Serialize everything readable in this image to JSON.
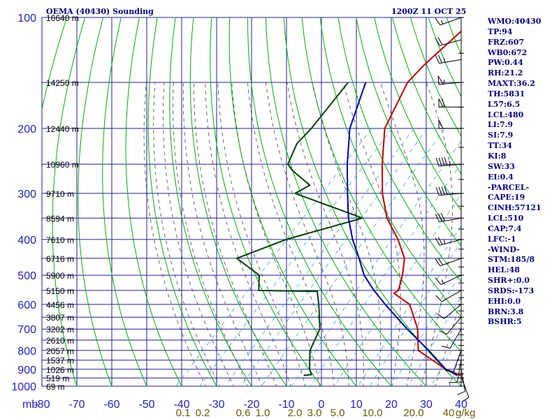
{
  "chart_data": {
    "type": "line",
    "chart_kind": "skew-t log-p sounding",
    "title": "OEMA (40430) Sounding",
    "time": "1200Z 11 OCT 25",
    "ylabel": "mb",
    "pressure_ticks": [
      100,
      200,
      300,
      400,
      500,
      600,
      700,
      800,
      900,
      1000
    ],
    "temp_ticks": [
      -80,
      -70,
      -60,
      -50,
      -40,
      -30,
      -20,
      -10,
      0,
      10,
      20,
      30,
      40
    ],
    "xlim": [
      -80,
      40
    ],
    "ylim": [
      1050,
      100
    ],
    "mixing_ratio_labels": [
      "0.1",
      "0.2",
      "0.6",
      "1.0",
      "2.0",
      "3.0",
      "5.0",
      "10.0",
      "20.0",
      "40"
    ],
    "mixing_ratio_unit": "g/kg",
    "height_labels": [
      {
        "text": "16640 m",
        "p": 100
      },
      {
        "text": "14250 m",
        "p": 150
      },
      {
        "text": "12440 m",
        "p": 200
      },
      {
        "text": "10960 m",
        "p": 250
      },
      {
        "text": "9710 m",
        "p": 300
      },
      {
        "text": "8594 m",
        "p": 350
      },
      {
        "text": "7610 m",
        "p": 400
      },
      {
        "text": "6716 m",
        "p": 450
      },
      {
        "text": "5900 m",
        "p": 500
      },
      {
        "text": "5150 m",
        "p": 550
      },
      {
        "text": "4456 m",
        "p": 600
      },
      {
        "text": "3807 m",
        "p": 650
      },
      {
        "text": "3202 m",
        "p": 700
      },
      {
        "text": "2610 m",
        "p": 750
      },
      {
        "text": "2057 m",
        "p": 800
      },
      {
        "text": "1537 m",
        "p": 850
      },
      {
        "text": "1026 m",
        "p": 900
      },
      {
        "text": "519 m",
        "p": 950
      },
      {
        "text": "69 m",
        "p": 1000
      }
    ],
    "series": [
      {
        "name": "Temperature",
        "color": "#c00000",
        "points": [
          [
            100,
            -56
          ],
          [
            135,
            -58
          ],
          [
            150,
            -58
          ],
          [
            200,
            -52
          ],
          [
            250,
            -43
          ],
          [
            300,
            -35
          ],
          [
            350,
            -27
          ],
          [
            400,
            -18
          ],
          [
            450,
            -11
          ],
          [
            500,
            -7
          ],
          [
            550,
            -4
          ],
          [
            560,
            -4.5
          ],
          [
            600,
            3
          ],
          [
            700,
            12
          ],
          [
            800,
            18
          ],
          [
            900,
            31
          ],
          [
            935,
            37
          ],
          [
            940,
            38.5
          ]
        ]
      },
      {
        "name": "Dewpoint",
        "color": "#004000",
        "points": [
          [
            150,
            -75
          ],
          [
            200,
            -73
          ],
          [
            220,
            -73
          ],
          [
            250,
            -70
          ],
          [
            260,
            -67
          ],
          [
            285,
            -58
          ],
          [
            300,
            -60
          ],
          [
            350,
            -34
          ],
          [
            400,
            -50
          ],
          [
            450,
            -59
          ],
          [
            500,
            -48
          ],
          [
            550,
            -44
          ],
          [
            553,
            -27
          ],
          [
            600,
            -23
          ],
          [
            700,
            -16
          ],
          [
            800,
            -13
          ],
          [
            900,
            -8
          ],
          [
            930,
            -6
          ],
          [
            935,
            -8
          ]
        ]
      },
      {
        "name": "Parcel",
        "color": "#0000a0",
        "points": [
          [
            150,
            -70
          ],
          [
            200,
            -62
          ],
          [
            250,
            -53
          ],
          [
            300,
            -45
          ],
          [
            350,
            -38
          ],
          [
            400,
            -31
          ],
          [
            450,
            -24
          ],
          [
            500,
            -18
          ],
          [
            550,
            -11
          ],
          [
            600,
            -4
          ],
          [
            700,
            9
          ],
          [
            800,
            21
          ],
          [
            900,
            31
          ],
          [
            935,
            36
          ]
        ]
      }
    ],
    "wind_barbs": [
      {
        "p": 100,
        "dir": 250,
        "spd": 15
      },
      {
        "p": 115,
        "dir": 255,
        "spd": 20
      },
      {
        "p": 130,
        "dir": 260,
        "spd": 25
      },
      {
        "p": 150,
        "dir": 265,
        "spd": 55
      },
      {
        "p": 175,
        "dir": 270,
        "spd": 60
      },
      {
        "p": 200,
        "dir": 270,
        "spd": 50
      },
      {
        "p": 250,
        "dir": 265,
        "spd": 45
      },
      {
        "p": 300,
        "dir": 265,
        "spd": 40
      },
      {
        "p": 350,
        "dir": 260,
        "spd": 30
      },
      {
        "p": 400,
        "dir": 255,
        "spd": 25
      },
      {
        "p": 450,
        "dir": 250,
        "spd": 20
      },
      {
        "p": 500,
        "dir": 245,
        "spd": 15
      },
      {
        "p": 550,
        "dir": 240,
        "spd": 10
      },
      {
        "p": 600,
        "dir": 230,
        "spd": 10
      },
      {
        "p": 650,
        "dir": 220,
        "spd": 10
      },
      {
        "p": 700,
        "dir": 210,
        "spd": 10
      },
      {
        "p": 800,
        "dir": 200,
        "spd": 10
      },
      {
        "p": 850,
        "dir": 190,
        "spd": 10
      },
      {
        "p": 900,
        "dir": 170,
        "spd": 10
      },
      {
        "p": 940,
        "dir": 160,
        "spd": 10
      }
    ]
  },
  "indices": [
    "WMO:40430",
    "TP:94",
    "FRZ:607",
    "WB0:672",
    "PW:0.44",
    "RH:21.2",
    "MAXT:36.2",
    "TH:5831",
    "L57:6.5",
    "LCL:480",
    "LI:7.9",
    "SI:7.9",
    "TT:34",
    "KI:8",
    "SW:33",
    "EI:0.4",
    "-PARCEL-",
    "CAPE:19",
    "CINH:57121",
    "LCL:510",
    "CAP:7.4",
    "LFC:-1",
    "-WIND-",
    "STM:185/8",
    "HEL:48",
    "SHR+:0.0",
    "SRDS:-173",
    "EHI:0.0",
    "BRN:3.8",
    "BSHR:5"
  ],
  "colors": {
    "frame": "#000080",
    "grid": "#1f1f9f",
    "dry_adiabat": "#00b000",
    "moist_adiabat": "#404040",
    "mixing_ratio": "#3aa0d0",
    "temperature": "#c00000",
    "dewpoint": "#004000",
    "parcel": "#0000a0"
  }
}
